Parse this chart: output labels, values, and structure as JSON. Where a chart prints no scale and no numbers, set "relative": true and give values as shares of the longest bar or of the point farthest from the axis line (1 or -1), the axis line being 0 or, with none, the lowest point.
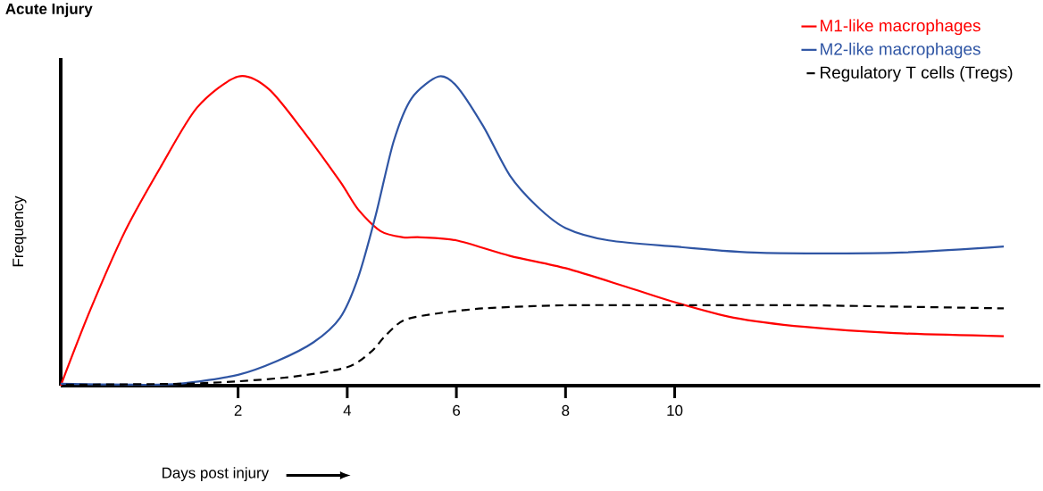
{
  "chart_data": {
    "type": "line",
    "title": "Acute Injury",
    "xlabel": "Days post injury",
    "ylabel": "Frequency",
    "relative": true,
    "xlim": [
      -1.25,
      16.7
    ],
    "xticks": [
      2,
      4,
      6,
      8,
      10
    ],
    "legend": "top right",
    "marker": "none",
    "series": [
      {
        "name": "M1-like macrophages",
        "color": "#ff0000",
        "line_style": "solid",
        "x": [
          -1.25,
          -0.72,
          -0.07,
          0.59,
          1.25,
          2.0,
          2.56,
          3.21,
          3.87,
          4.2,
          4.61,
          5.02,
          5.34,
          6.0,
          6.98,
          8.0,
          9.11,
          10.0,
          11.08,
          12.39,
          14.03,
          16.03
        ],
        "values": [
          0,
          0.24,
          0.5,
          0.71,
          0.9,
          1.0,
          0.96,
          0.82,
          0.66,
          0.57,
          0.5,
          0.48,
          0.48,
          0.47,
          0.42,
          0.38,
          0.32,
          0.27,
          0.22,
          0.19,
          0.17,
          0.16
        ]
      },
      {
        "name": "M2-like macrophages",
        "color": "#2f55a4",
        "line_style": "solid",
        "x": [
          -1.25,
          0.1,
          0.92,
          2.0,
          2.72,
          3.38,
          3.87,
          4.2,
          4.52,
          4.85,
          5.18,
          5.67,
          6.0,
          6.49,
          6.98,
          7.48,
          8.0,
          8.79,
          10.0,
          11.57,
          14.03,
          16.03
        ],
        "values": [
          0.006,
          0.003,
          0.006,
          0.035,
          0.08,
          0.14,
          0.22,
          0.35,
          0.55,
          0.79,
          0.93,
          1.0,
          0.97,
          0.84,
          0.68,
          0.58,
          0.51,
          0.47,
          0.45,
          0.43,
          0.43,
          0.45
        ]
      },
      {
        "name": "Regulatory T cells (Tregs)",
        "color": "#000000",
        "line_style": "dashed",
        "x": [
          -1.25,
          0.92,
          2.0,
          3.05,
          4.0,
          4.44,
          4.69,
          5.02,
          5.51,
          6.49,
          8.0,
          10.0,
          12.39,
          16.03
        ],
        "values": [
          0.003,
          0.006,
          0.014,
          0.03,
          0.06,
          0.11,
          0.16,
          0.21,
          0.23,
          0.25,
          0.26,
          0.26,
          0.26,
          0.25
        ]
      }
    ]
  }
}
